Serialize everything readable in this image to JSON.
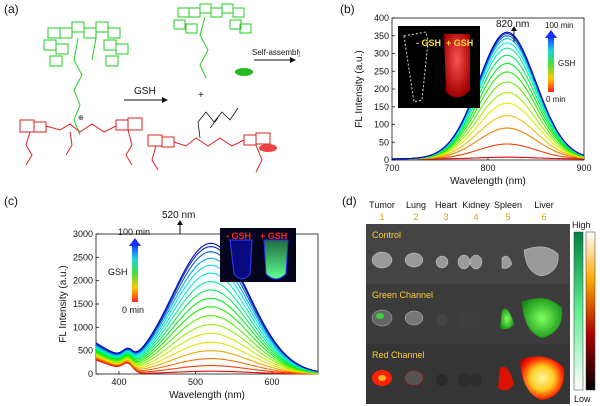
{
  "panels": {
    "a": {
      "label": "(a)",
      "arrow_label": "GSH",
      "plus": "+",
      "assembly_label": "Self-assembly"
    },
    "b": {
      "label": "(b)",
      "peak_label": "820 nm",
      "inset_minus": "- GSH",
      "inset_plus": "+ GSH",
      "colorbar_top": "100 min",
      "colorbar_mid": "GSH",
      "colorbar_bottom": "0 min"
    },
    "c": {
      "label": "(c)",
      "peak_label": "520 nm",
      "inset_minus": "- GSH",
      "inset_plus": "+ GSH",
      "colorbar_top": "100 min",
      "colorbar_mid": "GSH",
      "colorbar_bottom": "0 min"
    },
    "d": {
      "label": "(d)",
      "organs": [
        "Tumor",
        "Lung",
        "Heart",
        "Kidney",
        "Spleen",
        "Liver"
      ],
      "numbers": [
        "1",
        "2",
        "3",
        "4",
        "5",
        "6"
      ],
      "rows": [
        "Control",
        "Green Channel",
        "Red Channel"
      ],
      "scale_high": "High",
      "scale_low": "Low"
    }
  },
  "chart_data": [
    {
      "type": "line",
      "panel": "b",
      "xlabel": "Wavelength (nm)",
      "ylabel": "FL Intensity (a.u.)",
      "xlim": [
        700,
        900
      ],
      "ylim": [
        0,
        400
      ],
      "xticks": [
        700,
        800,
        900
      ],
      "yticks": [
        0,
        50,
        100,
        150,
        200,
        250,
        300,
        350,
        400
      ],
      "peak_x": 820,
      "baseline": 3,
      "width": 30,
      "series_peaks": [
        8,
        45,
        90,
        125,
        160,
        190,
        220,
        248,
        272,
        295,
        315,
        330,
        342,
        350,
        356,
        360
      ]
    },
    {
      "type": "line",
      "panel": "c",
      "xlabel": "Wavelength (nm)",
      "ylabel": "FL Intensity (a.u.)",
      "xlim": [
        370,
        660
      ],
      "ylim": [
        0,
        3000
      ],
      "xticks": [
        400,
        500,
        600
      ],
      "yticks": [
        0,
        500,
        1000,
        1500,
        2000,
        2500,
        3000
      ],
      "peak_x": 520,
      "baseline": 0,
      "width": 50,
      "series_peaks": [
        60,
        180,
        330,
        500,
        680,
        870,
        1060,
        1250,
        1440,
        1620,
        1800,
        1980,
        2160,
        2330,
        2480,
        2620,
        2730,
        2800
      ]
    }
  ]
}
